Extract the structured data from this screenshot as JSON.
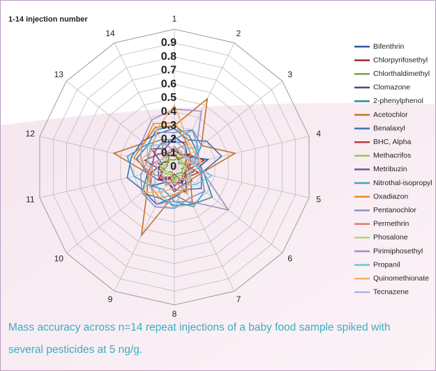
{
  "chart_data": {
    "type": "radar",
    "title": "1-14 injection number",
    "caption": "Mass accuracy across n=14 repeat injections of a baby food sample spiked with several pesticides at 5 ng/g.",
    "categories": [
      "1",
      "2",
      "3",
      "4",
      "5",
      "6",
      "7",
      "8",
      "9",
      "10",
      "11",
      "12",
      "13",
      "14"
    ],
    "rlim": [
      0,
      1
    ],
    "rticks": [
      0,
      0.1,
      0.2,
      0.3,
      0.4,
      0.5,
      0.6,
      0.7,
      0.8,
      0.9
    ],
    "grid": true,
    "legend": "right",
    "series": [
      {
        "name": "Bifenthrin",
        "color": "#2e5597",
        "values": [
          0.22,
          0.18,
          0.12,
          0.25,
          0.14,
          0.1,
          0.2,
          0.16,
          0.12,
          0.22,
          0.17,
          0.09,
          0.21,
          0.15
        ]
      },
      {
        "name": "Chlorpyrifosethyl",
        "color": "#a0282a",
        "values": [
          0.1,
          0.06,
          0.14,
          0.22,
          0.1,
          0.08,
          0.12,
          0.05,
          0.1,
          0.15,
          0.08,
          0.12,
          0.06,
          0.09
        ]
      },
      {
        "name": "Chlorthaldimethyl",
        "color": "#76a33a",
        "values": [
          0.05,
          0.08,
          0.04,
          0.1,
          0.06,
          0.07,
          0.05,
          0.09,
          0.04,
          0.06,
          0.08,
          0.05,
          0.07,
          0.06
        ]
      },
      {
        "name": "Clomazone",
        "color": "#5b3f7a",
        "values": [
          0.12,
          0.1,
          0.15,
          0.12,
          0.08,
          0.1,
          0.13,
          0.11,
          0.09,
          0.14,
          0.12,
          0.1,
          0.08,
          0.11
        ]
      },
      {
        "name": "2-phenylphenol",
        "color": "#2b8a9a",
        "values": [
          0.3,
          0.25,
          0.2,
          0.18,
          0.22,
          0.35,
          0.3,
          0.28,
          0.25,
          0.3,
          0.2,
          0.28,
          0.25,
          0.3
        ]
      },
      {
        "name": "Acetochlor",
        "color": "#c0732a",
        "values": [
          0.3,
          0.55,
          0.25,
          0.45,
          0.2,
          0.15,
          0.3,
          0.2,
          0.55,
          0.25,
          0.2,
          0.45,
          0.28,
          0.32
        ]
      },
      {
        "name": "Benalaxyl",
        "color": "#3e6fb8",
        "values": [
          0.28,
          0.22,
          0.3,
          0.35,
          0.2,
          0.25,
          0.18,
          0.22,
          0.3,
          0.28,
          0.35,
          0.32,
          0.3,
          0.27
        ]
      },
      {
        "name": "BHC, Alpha",
        "color": "#b83b3b",
        "values": [
          0.15,
          0.1,
          0.12,
          0.08,
          0.18,
          0.12,
          0.1,
          0.14,
          0.08,
          0.12,
          0.1,
          0.22,
          0.15,
          0.12
        ]
      },
      {
        "name": "Methacrifos",
        "color": "#9bc057",
        "values": [
          0.08,
          0.12,
          0.06,
          0.1,
          0.05,
          0.09,
          0.07,
          0.11,
          0.06,
          0.08,
          0.1,
          0.07,
          0.05,
          0.09
        ]
      },
      {
        "name": "Metribuzin",
        "color": "#7a4f9a",
        "values": [
          0.18,
          0.2,
          0.15,
          0.12,
          0.1,
          0.16,
          0.14,
          0.18,
          0.12,
          0.15,
          0.2,
          0.16,
          0.18,
          0.2
        ]
      },
      {
        "name": "Nitrothal-isopropyl",
        "color": "#3aa3c8",
        "values": [
          0.2,
          0.3,
          0.25,
          0.15,
          0.2,
          0.28,
          0.32,
          0.25,
          0.18,
          0.22,
          0.3,
          0.35,
          0.26,
          0.22
        ]
      },
      {
        "name": "Oxadiazon",
        "color": "#f08a24",
        "values": [
          0.32,
          0.2,
          0.15,
          0.1,
          0.12,
          0.15,
          0.18,
          0.2,
          0.25,
          0.22,
          0.18,
          0.3,
          0.28,
          0.35
        ]
      },
      {
        "name": "Pentanochlor",
        "color": "#7f96cc",
        "values": [
          0.25,
          0.3,
          0.22,
          0.18,
          0.2,
          0.28,
          0.25,
          0.3,
          0.32,
          0.3,
          0.25,
          0.2,
          0.22,
          0.28
        ]
      },
      {
        "name": "Permethrin",
        "color": "#e07b6f",
        "values": [
          0.12,
          0.18,
          0.1,
          0.15,
          0.08,
          0.12,
          0.2,
          0.1,
          0.14,
          0.12,
          0.18,
          0.15,
          0.1,
          0.2
        ]
      },
      {
        "name": "Phosalone",
        "color": "#b7d37a",
        "values": [
          0.1,
          0.08,
          0.12,
          0.06,
          0.1,
          0.14,
          0.08,
          0.1,
          0.12,
          0.06,
          0.09,
          0.11,
          0.08,
          0.1
        ]
      },
      {
        "name": "Pirimiphosethyl",
        "color": "#a08cc8",
        "values": [
          0.42,
          0.45,
          0.2,
          0.15,
          0.22,
          0.5,
          0.28,
          0.25,
          0.3,
          0.22,
          0.2,
          0.25,
          0.3,
          0.38
        ]
      },
      {
        "name": "Propanil",
        "color": "#6ec4d8",
        "values": [
          0.2,
          0.15,
          0.22,
          0.12,
          0.28,
          0.2,
          0.15,
          0.3,
          0.22,
          0.18,
          0.15,
          0.2,
          0.25,
          0.18
        ]
      },
      {
        "name": "Quinomethionate",
        "color": "#f7b06a",
        "values": [
          0.45,
          0.22,
          0.18,
          0.2,
          0.15,
          0.12,
          0.22,
          0.15,
          0.2,
          0.3,
          0.15,
          0.25,
          0.2,
          0.3
        ]
      },
      {
        "name": "Tecnazene",
        "color": "#aab8de",
        "values": [
          0.15,
          0.12,
          0.1,
          0.18,
          0.12,
          0.15,
          0.1,
          0.12,
          0.15,
          0.1,
          0.12,
          0.14,
          0.1,
          0.12
        ]
      }
    ]
  }
}
